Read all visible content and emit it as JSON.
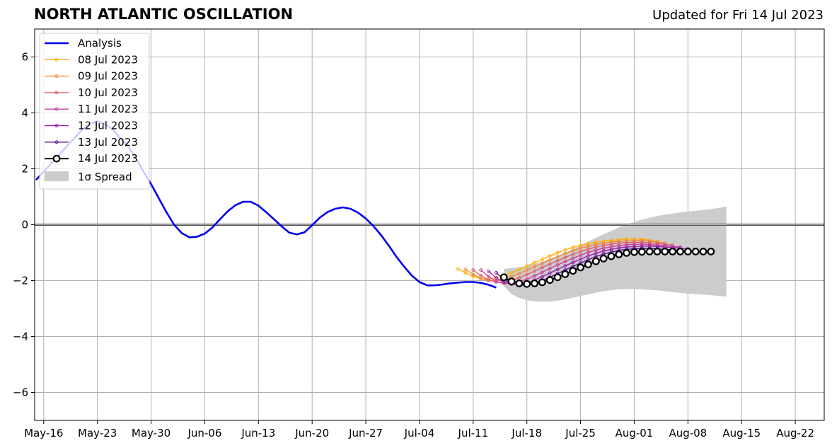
{
  "header": {
    "title": "NORTH ATLANTIC OSCILLATION",
    "updated": "Updated for Fri 14 Jul 2023"
  },
  "chart_data": {
    "type": "line",
    "title": "NORTH ATLANTIC OSCILLATION",
    "xlabel": "",
    "ylabel": "",
    "x_axis": {
      "type": "date",
      "range": [
        "2023-05-15",
        "2023-08-25"
      ],
      "tick_labels": [
        "May-16",
        "May-23",
        "May-30",
        "Jun-06",
        "Jun-13",
        "Jun-20",
        "Jun-27",
        "Jul-04",
        "Jul-11",
        "Jul-18",
        "Jul-25",
        "Aug-01",
        "Aug-08",
        "Aug-15",
        "Aug-22"
      ],
      "tick_dates": [
        "2023-05-16",
        "2023-05-23",
        "2023-05-30",
        "2023-06-06",
        "2023-06-13",
        "2023-06-20",
        "2023-06-27",
        "2023-07-04",
        "2023-07-11",
        "2023-07-18",
        "2023-07-25",
        "2023-08-01",
        "2023-08-08",
        "2023-08-15",
        "2023-08-22"
      ]
    },
    "ylim": [
      -7,
      7
    ],
    "y_ticks": [
      -6,
      -4,
      -2,
      0,
      2,
      4,
      6
    ],
    "y_tick_labels": [
      "−6",
      "−4",
      "−2",
      "0",
      "2",
      "4",
      "6"
    ],
    "grid": true,
    "legend_position": "upper-left",
    "zero_line": 0,
    "colors": {
      "analysis": "#0000ee",
      "spread": "#cccccc",
      "grid": "#b0b0b0"
    },
    "analysis": {
      "name": "Analysis",
      "start": "2023-05-15",
      "values": [
        1.6,
        1.9,
        2.2,
        2.5,
        2.8,
        3.1,
        3.4,
        3.6,
        3.7,
        3.6,
        3.4,
        3.1,
        2.8,
        2.4,
        1.9,
        1.45,
        0.95,
        0.45,
        0.0,
        -0.3,
        -0.45,
        -0.43,
        -0.32,
        -0.1,
        0.2,
        0.48,
        0.7,
        0.82,
        0.82,
        0.68,
        0.45,
        0.2,
        -0.05,
        -0.28,
        -0.35,
        -0.27,
        -0.02,
        0.25,
        0.45,
        0.57,
        0.62,
        0.57,
        0.43,
        0.22,
        -0.05,
        -0.38,
        -0.75,
        -1.15,
        -1.5,
        -1.82,
        -2.05,
        -2.17,
        -2.17,
        -2.14,
        -2.1,
        -2.07,
        -2.05,
        -2.05,
        -2.08,
        -2.15,
        -2.25
      ]
    },
    "forecasts": [
      {
        "name": "08 Jul 2023",
        "color": "#ffb000",
        "start": "2023-07-09",
        "values": [
          -1.58,
          -1.72,
          -1.85,
          -1.93,
          -1.95,
          -1.9,
          -1.82,
          -1.72,
          -1.6,
          -1.48,
          -1.36,
          -1.24,
          -1.12,
          -1.0,
          -0.9,
          -0.81,
          -0.74,
          -0.68,
          -0.63,
          -0.59,
          -0.56,
          -0.54,
          -0.52,
          -0.51,
          -0.52,
          -0.55,
          -0.6
        ]
      },
      {
        "name": "09 Jul 2023",
        "color": "#f08a3c",
        "start": "2023-07-10",
        "values": [
          -1.6,
          -1.78,
          -1.92,
          -2.0,
          -2.0,
          -1.95,
          -1.86,
          -1.75,
          -1.62,
          -1.5,
          -1.38,
          -1.26,
          -1.14,
          -1.03,
          -0.93,
          -0.84,
          -0.77,
          -0.71,
          -0.66,
          -0.62,
          -0.6,
          -0.58,
          -0.57,
          -0.57,
          -0.59,
          -0.62,
          -0.66
        ]
      },
      {
        "name": "10 Jul 2023",
        "color": "#e06070",
        "start": "2023-07-11",
        "values": [
          -1.62,
          -1.82,
          -1.98,
          -2.05,
          -2.05,
          -1.99,
          -1.9,
          -1.78,
          -1.66,
          -1.53,
          -1.41,
          -1.29,
          -1.17,
          -1.06,
          -0.96,
          -0.87,
          -0.8,
          -0.74,
          -0.7,
          -0.66,
          -0.64,
          -0.63,
          -0.63,
          -0.64,
          -0.67,
          -0.7,
          -0.73
        ]
      },
      {
        "name": "11 Jul 2023",
        "color": "#c8409a",
        "start": "2023-07-12",
        "values": [
          -1.62,
          -1.85,
          -2.02,
          -2.1,
          -2.1,
          -2.04,
          -1.95,
          -1.83,
          -1.7,
          -1.57,
          -1.44,
          -1.32,
          -1.2,
          -1.09,
          -0.99,
          -0.91,
          -0.84,
          -0.79,
          -0.75,
          -0.72,
          -0.7,
          -0.7,
          -0.71,
          -0.73,
          -0.75,
          -0.78,
          -0.8
        ]
      },
      {
        "name": "12 Jul 2023",
        "color": "#9a20a8",
        "start": "2023-07-13",
        "values": [
          -1.66,
          -1.9,
          -2.06,
          -2.13,
          -2.14,
          -2.08,
          -1.98,
          -1.86,
          -1.73,
          -1.6,
          -1.47,
          -1.35,
          -1.23,
          -1.12,
          -1.02,
          -0.94,
          -0.88,
          -0.83,
          -0.8,
          -0.78,
          -0.77,
          -0.77,
          -0.78,
          -0.8,
          -0.82,
          -0.84,
          -0.86
        ]
      },
      {
        "name": "13 Jul 2023",
        "color": "#5a1090",
        "start": "2023-07-14",
        "values": [
          -1.72,
          -1.95,
          -2.1,
          -2.16,
          -2.16,
          -2.1,
          -2.0,
          -1.88,
          -1.75,
          -1.62,
          -1.49,
          -1.37,
          -1.25,
          -1.14,
          -1.05,
          -0.98,
          -0.92,
          -0.88,
          -0.86,
          -0.85,
          -0.85,
          -0.86,
          -0.88,
          -0.9,
          -0.92,
          -0.93,
          -0.95
        ]
      },
      {
        "name": "14 Jul 2023",
        "color": "#000000",
        "start": "2023-07-15",
        "values": [
          -1.88,
          -2.03,
          -2.1,
          -2.12,
          -2.1,
          -2.06,
          -1.98,
          -1.88,
          -1.77,
          -1.65,
          -1.53,
          -1.42,
          -1.31,
          -1.21,
          -1.13,
          -1.06,
          -1.01,
          -0.98,
          -0.97,
          -0.96,
          -0.96,
          -0.96,
          -0.96,
          -0.96,
          -0.96,
          -0.96,
          -0.96,
          -0.96
        ]
      }
    ],
    "spread": {
      "name": "1σ Spread",
      "start": "2023-07-15",
      "upper": [
        -1.58,
        -1.55,
        -1.52,
        -1.47,
        -1.4,
        -1.32,
        -1.23,
        -1.12,
        -1.0,
        -0.87,
        -0.74,
        -0.6,
        -0.47,
        -0.34,
        -0.22,
        -0.1,
        0.0,
        0.1,
        0.18,
        0.25,
        0.31,
        0.36,
        0.4,
        0.44,
        0.47,
        0.5,
        0.53,
        0.56,
        0.6,
        0.65
      ],
      "lower": [
        -2.2,
        -2.48,
        -2.62,
        -2.7,
        -2.74,
        -2.76,
        -2.75,
        -2.72,
        -2.67,
        -2.61,
        -2.55,
        -2.49,
        -2.43,
        -2.38,
        -2.34,
        -2.31,
        -2.3,
        -2.3,
        -2.31,
        -2.33,
        -2.35,
        -2.38,
        -2.41,
        -2.44,
        -2.46,
        -2.48,
        -2.5,
        -2.52,
        -2.55,
        -2.57
      ]
    }
  }
}
